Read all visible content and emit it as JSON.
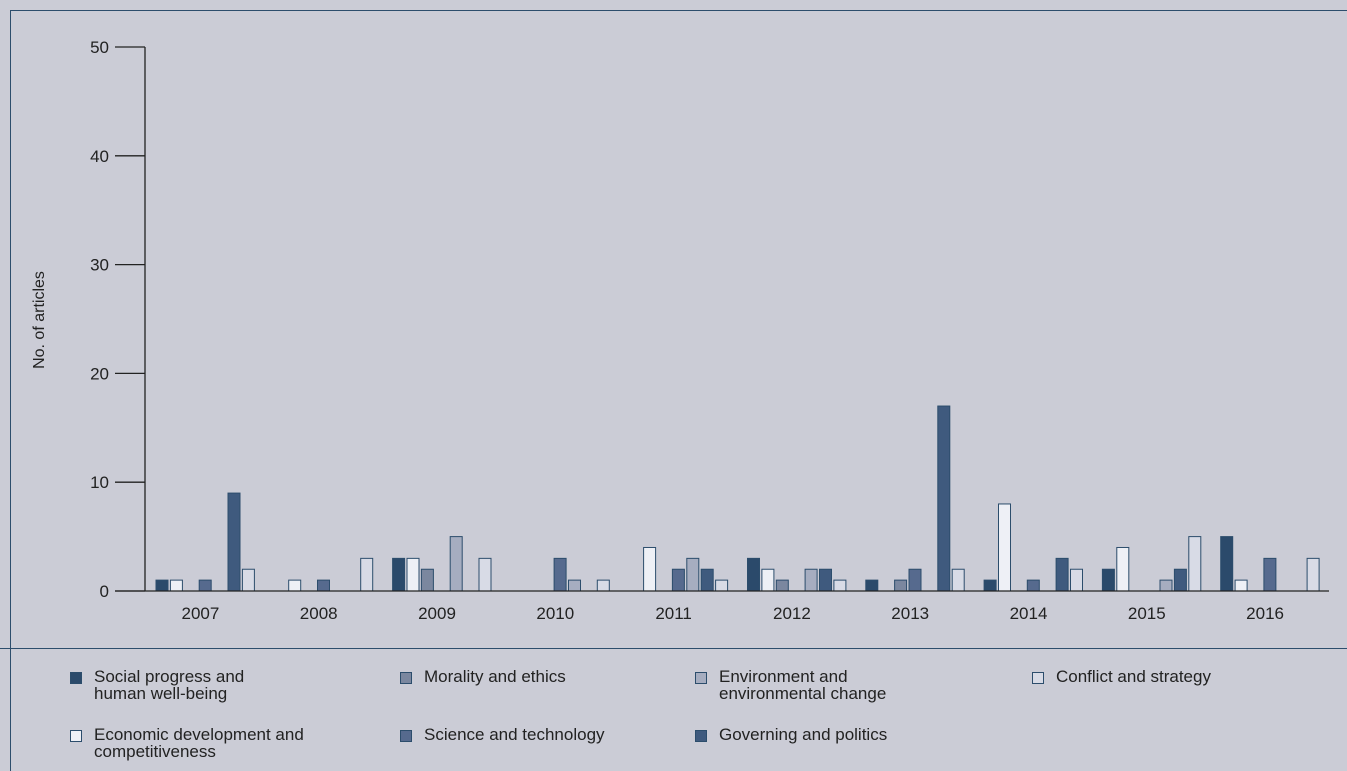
{
  "chart_data": {
    "type": "bar",
    "title": "",
    "xlabel": "",
    "ylabel": "No. of articles",
    "ylim": [
      0,
      50
    ],
    "yticks": [
      0,
      10,
      20,
      30,
      40,
      50
    ],
    "categories": [
      "2007",
      "2008",
      "2009",
      "2010",
      "2011",
      "2012",
      "2013",
      "2014",
      "2015",
      "2016"
    ],
    "grid": false,
    "legend_position": "bottom",
    "series": [
      {
        "name": "Social progress and\nhuman well-being",
        "color": "#2b4a6b",
        "values": [
          1,
          0,
          3,
          0,
          0,
          3,
          1,
          1,
          2,
          5
        ]
      },
      {
        "name": "Economic development and\ncompetitiveness",
        "color": "#eef0f6",
        "values": [
          1,
          1,
          3,
          0,
          4,
          2,
          0,
          8,
          4,
          1
        ]
      },
      {
        "name": "Morality and ethics",
        "color": "#7b879f",
        "values": [
          0,
          0,
          2,
          0,
          0,
          1,
          1,
          0,
          0,
          0
        ]
      },
      {
        "name": "Science and technology",
        "color": "#566a8e",
        "values": [
          1,
          1,
          0,
          3,
          2,
          0,
          2,
          1,
          0,
          3
        ]
      },
      {
        "name": "Environment and\nenvironmental change",
        "color": "#a6adc0",
        "values": [
          0,
          0,
          5,
          1,
          3,
          2,
          0,
          0,
          1,
          0
        ]
      },
      {
        "name": "Governing and politics",
        "color": "#3f5a7e",
        "values": [
          9,
          0,
          0,
          0,
          2,
          2,
          17,
          3,
          2,
          0
        ]
      },
      {
        "name": "Conflict and strategy",
        "color": "#d8dbe6",
        "values": [
          2,
          3,
          3,
          1,
          1,
          1,
          2,
          2,
          5,
          3
        ]
      }
    ]
  },
  "legend": {
    "items": [
      {
        "label": "Social progress and\nhuman well-being",
        "color": "#2b4a6b"
      },
      {
        "label": "Morality and ethics",
        "color": "#7b879f"
      },
      {
        "label": "Environment and\nenvironmental change",
        "color": "#a6adc0"
      },
      {
        "label": "Conflict and strategy",
        "color": "#d8dbe6"
      },
      {
        "label": "Economic development and\ncompetitiveness",
        "color": "#eef0f6"
      },
      {
        "label": "Science and technology",
        "color": "#566a8e"
      },
      {
        "label": "Governing and politics",
        "color": "#3f5a7e"
      }
    ]
  }
}
